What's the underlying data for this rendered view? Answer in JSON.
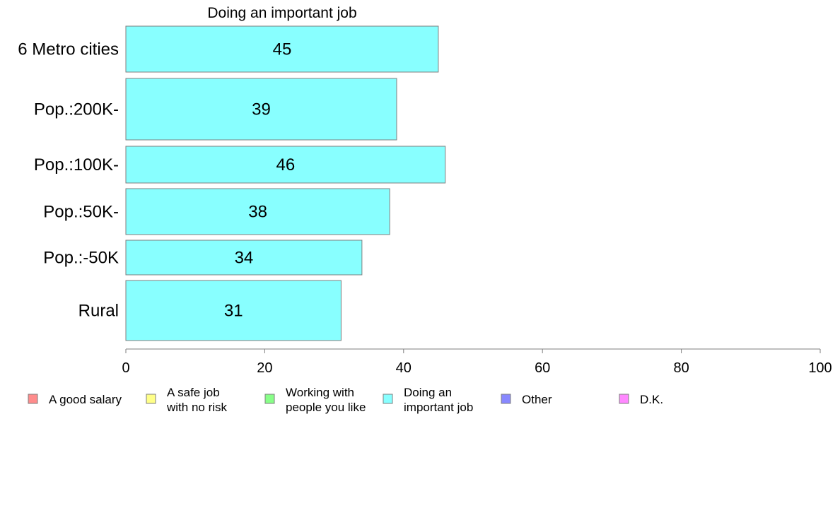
{
  "chart_data": {
    "type": "bar",
    "orientation": "horizontal",
    "title": "Doing an important job",
    "categories": [
      "6 Metro cities",
      "Pop.:200K-",
      "Pop.:100K-",
      "Pop.:50K-",
      "Pop.:-50K",
      "Rural"
    ],
    "values": [
      45,
      39,
      46,
      38,
      34,
      31
    ],
    "data_labels": [
      "45",
      "39",
      "46",
      "38",
      "34",
      "31"
    ],
    "xlim": [
      0,
      100
    ],
    "x_ticks": [
      "0",
      "20",
      "40",
      "60",
      "80",
      "100"
    ],
    "grid": false,
    "bar_color": "#88FFFF",
    "bar_stroke": "#7f7f7f",
    "legend": {
      "placement": "bottom",
      "entries": [
        {
          "lines": [
            "A good salary"
          ],
          "color": "#FF8C8C"
        },
        {
          "lines": [
            "A safe job",
            "with no risk"
          ],
          "color": "#FFFF88"
        },
        {
          "lines": [
            "Working with",
            "people you like"
          ],
          "color": "#88FF88"
        },
        {
          "lines": [
            "Doing an",
            "important job"
          ],
          "color": "#88FFFF"
        },
        {
          "lines": [
            "Other"
          ],
          "color": "#8888FF"
        },
        {
          "lines": [
            "D.K."
          ],
          "color": "#FF88FF"
        }
      ]
    }
  }
}
